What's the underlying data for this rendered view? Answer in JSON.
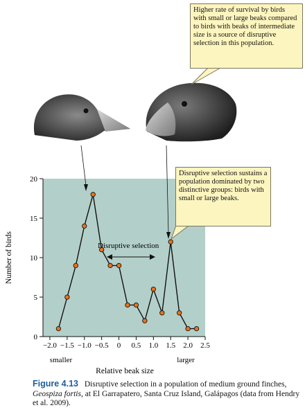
{
  "callouts": {
    "top": "Higher rate of survival by birds with small or large beaks compared to birds with beaks of intermediate size is a source of disruptive selection in this population.",
    "mid": "Disruptive selection sustains a population dominated by two distinctive groups: birds with small or large beaks."
  },
  "annotation": "Disruptive selection",
  "caption": {
    "figure_number": "Figure 4.13",
    "text_before": "Disruptive selection in a population of medium ground finches,",
    "species": "Geospiza fortis,",
    "text_after": "at El Garrapatero, Santa Cruz Island, Galápagos (data from Hendry et al. 2009)."
  },
  "colors": {
    "plot_background": "#b3cfc9",
    "marker_fill": "#e8731c",
    "callout_background": "#fdf5bf",
    "caption_accent": "#1f5c9e"
  },
  "chart_data": {
    "type": "line",
    "xlabel": "Relative beak size",
    "ylabel": "Number of birds",
    "x_tick_labels": [
      "−2.0",
      "−1.5",
      "−1.0",
      "−0.5",
      "0",
      "0.5",
      "1.0",
      "1.5",
      "2.0",
      "2.5"
    ],
    "x_ticks": [
      -2.0,
      -1.5,
      -1.0,
      -0.5,
      0,
      0.5,
      1.0,
      1.5,
      2.0,
      2.5
    ],
    "y_ticks": [
      0,
      5,
      10,
      15,
      20
    ],
    "xlim": [
      -2.2,
      2.5
    ],
    "ylim": [
      0,
      20
    ],
    "x_end_labels": {
      "left": "smaller",
      "right": "larger"
    },
    "grid": false,
    "series": [
      {
        "x": [
          -1.75,
          -1.5,
          -1.25,
          -1.0,
          -0.75,
          -0.5,
          -0.25,
          0.0,
          0.25,
          0.5,
          0.75,
          1.0,
          1.25,
          1.5,
          1.75,
          2.0,
          2.25
        ],
        "y": [
          1,
          5,
          9,
          14,
          18,
          11,
          9,
          9,
          4,
          4,
          2,
          6,
          3,
          12,
          3,
          1,
          1
        ]
      }
    ]
  }
}
